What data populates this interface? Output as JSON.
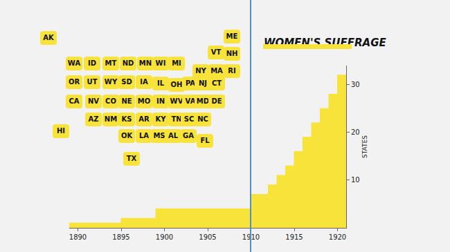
{
  "chart_data": {
    "type": "area",
    "title": "WOMEN'S SUFFRAGE",
    "y_label": "STATES",
    "x": [
      1889,
      1895,
      1899,
      1910,
      1912,
      1913,
      1914,
      1915,
      1916,
      1917,
      1918,
      1919,
      1920,
      1921
    ],
    "values": [
      1,
      2,
      4,
      7,
      9,
      11,
      13,
      16,
      19,
      22,
      25,
      28,
      32,
      32
    ],
    "color": "#f7e33a",
    "line_style": "step",
    "xlim": [
      1889,
      1921
    ],
    "xticks": [
      1890,
      1895,
      1900,
      1905,
      1910,
      1915,
      1920
    ],
    "ylim": [
      0,
      34
    ],
    "yticks": [
      10,
      20,
      30
    ],
    "grid": false
  },
  "map": {
    "color": "#f7e33a",
    "states": [
      "AK",
      "ME",
      "VT",
      "NH",
      "WA",
      "ID",
      "MT",
      "ND",
      "MN",
      "WI",
      "MI",
      "NY",
      "MA",
      "RI",
      "OR",
      "UT",
      "WY",
      "SD",
      "IA",
      "IL",
      "OH",
      "PA",
      "NJ",
      "CT",
      "CA",
      "NV",
      "CO",
      "NE",
      "MO",
      "IN",
      "WV",
      "VA",
      "MD",
      "DE",
      "AZ",
      "NM",
      "KS",
      "AR",
      "KY",
      "TN",
      "SC",
      "NC",
      "OK",
      "LA",
      "MS",
      "AL",
      "GA",
      "FL",
      "TX",
      "HI"
    ]
  }
}
